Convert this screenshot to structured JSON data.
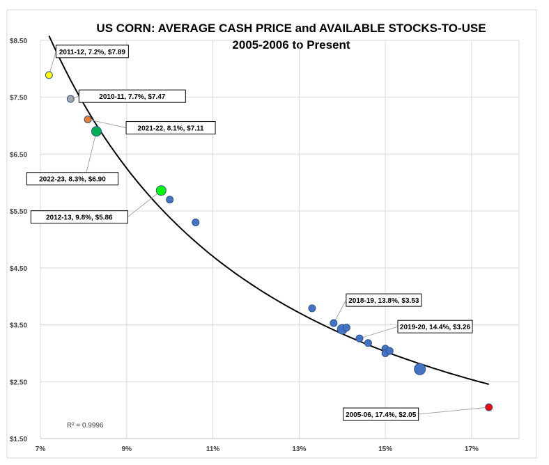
{
  "chart_data": {
    "type": "scatter",
    "title": "US CORN: AVERAGE CASH PRICE and AVAILABLE STOCKS-TO-USE",
    "subtitle": "2005-2006 to Present",
    "xlabel": "",
    "ylabel": "",
    "xlim": [
      7,
      18.1
    ],
    "ylim": [
      1.5,
      8.5
    ],
    "x_ticks": [
      7,
      9,
      11,
      13,
      15,
      17
    ],
    "x_tick_labels": [
      "7%",
      "9%",
      "11%",
      "13%",
      "15%",
      "17%"
    ],
    "y_ticks": [
      1.5,
      2.5,
      3.5,
      4.5,
      5.5,
      6.5,
      7.5,
      8.5
    ],
    "y_tick_labels": [
      "$1.50",
      "$2.50",
      "$3.50",
      "$4.50",
      "$5.50",
      "$6.50",
      "$7.50",
      "$8.50"
    ],
    "grid": true,
    "r_squared_label": "R² = 0.9996",
    "trendline": {
      "type": "power",
      "color": "#000000"
    },
    "points": [
      {
        "x": 7.2,
        "y": 7.89,
        "color": "#ffff00",
        "size": "small",
        "label": "2011-12, 7.2%, $7.89"
      },
      {
        "x": 7.7,
        "y": 7.47,
        "color": "#a6a6a6",
        "size": "small",
        "label": "2010-11, 7.7%, $7.47"
      },
      {
        "x": 8.1,
        "y": 7.11,
        "color": "#ed7d31",
        "size": "small",
        "label": "2021-22, 8.1%, $7.11"
      },
      {
        "x": 8.3,
        "y": 6.9,
        "color": "#00b050",
        "size": "medium",
        "label": "2022-23, 8.3%, $6.90"
      },
      {
        "x": 9.8,
        "y": 5.86,
        "color": "#00ff00",
        "size": "medium",
        "label": "2012-13, 9.8%, $5.86"
      },
      {
        "x": 10.0,
        "y": 5.7,
        "color": "#4472c4",
        "size": "small",
        "label": ""
      },
      {
        "x": 10.6,
        "y": 5.3,
        "color": "#4472c4",
        "size": "small",
        "label": ""
      },
      {
        "x": 13.3,
        "y": 3.79,
        "color": "#4472c4",
        "size": "small",
        "label": ""
      },
      {
        "x": 13.8,
        "y": 3.53,
        "color": "#4472c4",
        "size": "small",
        "label": "2018-19, 13.8%, $3.53"
      },
      {
        "x": 14.0,
        "y": 3.42,
        "color": "#4472c4",
        "size": "medium",
        "label": ""
      },
      {
        "x": 14.1,
        "y": 3.45,
        "color": "#4472c4",
        "size": "small",
        "label": ""
      },
      {
        "x": 14.4,
        "y": 3.26,
        "color": "#4472c4",
        "size": "small",
        "label": "2019-20, 14.4%, $3.26"
      },
      {
        "x": 14.6,
        "y": 3.18,
        "color": "#4472c4",
        "size": "small",
        "label": ""
      },
      {
        "x": 15.0,
        "y": 3.08,
        "color": "#4472c4",
        "size": "small",
        "label": ""
      },
      {
        "x": 15.0,
        "y": 3.0,
        "color": "#4472c4",
        "size": "small",
        "label": ""
      },
      {
        "x": 15.1,
        "y": 3.04,
        "color": "#4472c4",
        "size": "small",
        "label": ""
      },
      {
        "x": 15.8,
        "y": 2.72,
        "color": "#4472c4",
        "size": "large",
        "label": ""
      },
      {
        "x": 17.4,
        "y": 2.05,
        "color": "#ff0000",
        "size": "small",
        "label": "2005-06, 17.4%, $2.05"
      }
    ]
  }
}
